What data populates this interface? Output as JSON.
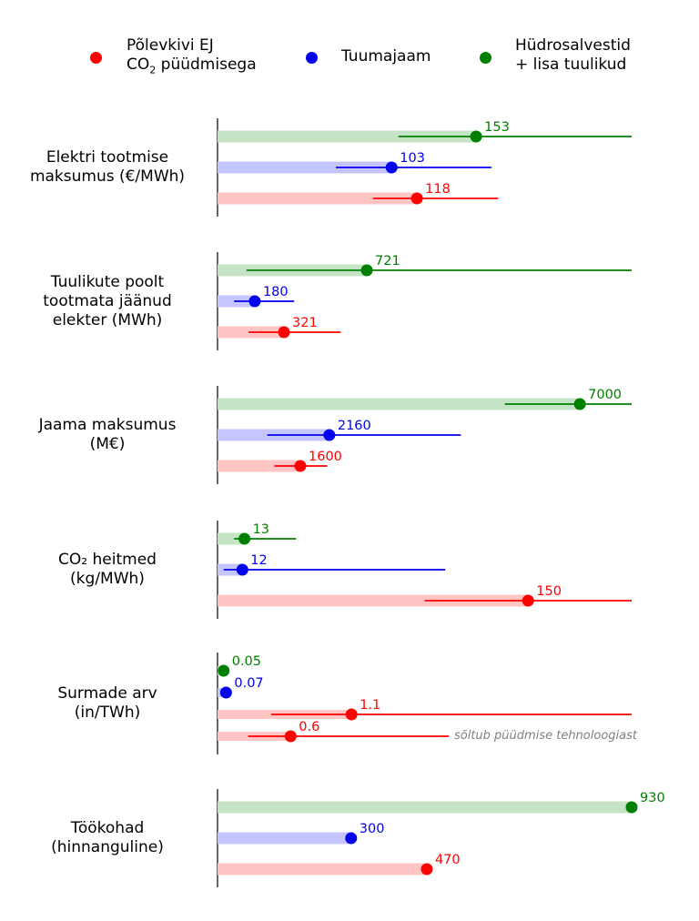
{
  "legend": {
    "items": [
      {
        "key": "red",
        "line1": "Põlevkivi EJ",
        "line2_pre": "CO",
        "line2_sub": "2",
        "line2_post": " püüdmisega",
        "color": "#ff0000"
      },
      {
        "key": "blue",
        "line1": "Tuumajaam",
        "color": "#0000ee"
      },
      {
        "key": "green",
        "line1": "Hüdrosalvestid",
        "line2": "+ lisa tuulikud",
        "color": "#008000"
      }
    ]
  },
  "note_text": "sõltub püüdmise tehnoloogiast",
  "chart_data": {
    "type": "bar",
    "series_colors": {
      "green": "#008000",
      "blue": "#0000ee",
      "red": "#ff0000"
    },
    "bar_colors": {
      "green": "#c5e3c5",
      "blue": "#c5c5ff",
      "red": "#ffc5c5"
    },
    "panels": [
      {
        "label_lines": [
          "Elektri tootmise",
          "maksumus (€/MWh)"
        ],
        "xlim": [
          0,
          245
        ],
        "rows": [
          {
            "series": "green",
            "value": 153,
            "label": "153",
            "lo": 107,
            "hi": 245
          },
          {
            "series": "blue",
            "value": 103,
            "label": "103",
            "lo": 70,
            "hi": 162
          },
          {
            "series": "red",
            "value": 118,
            "label": "118",
            "lo": 92,
            "hi": 166
          }
        ]
      },
      {
        "label_lines": [
          "Tuulikute poolt",
          "tootmata jäänud",
          "elekter (MWh)"
        ],
        "xlim": [
          0,
          2000
        ],
        "rows": [
          {
            "series": "green",
            "value": 721,
            "label": "721",
            "lo": 140,
            "hi": 2000
          },
          {
            "series": "blue",
            "value": 180,
            "label": "180",
            "lo": 80,
            "hi": 370
          },
          {
            "series": "red",
            "value": 321,
            "label": "321",
            "lo": 150,
            "hi": 595
          }
        ]
      },
      {
        "label_lines": [
          "Jaama maksumus",
          "(M€)"
        ],
        "xlim": [
          0,
          8000
        ],
        "rows": [
          {
            "series": "green",
            "value": 7000,
            "label": "7000",
            "lo": 5550,
            "hi": 8800
          },
          {
            "series": "blue",
            "value": 2160,
            "label": "2160",
            "lo": 960,
            "hi": 4700
          },
          {
            "series": "red",
            "value": 1600,
            "label": "1600",
            "lo": 1100,
            "hi": 2120
          }
        ]
      },
      {
        "label_lines": [
          "CO₂ heitmed",
          "(kg/MWh)"
        ],
        "xlim": [
          0,
          200
        ],
        "rows": [
          {
            "series": "green",
            "value": 13,
            "label": "13",
            "lo": 8,
            "hi": 38
          },
          {
            "series": "blue",
            "value": 12,
            "label": "12",
            "lo": 3,
            "hi": 110
          },
          {
            "series": "red",
            "value": 150,
            "label": "150",
            "lo": 100,
            "hi": 200
          }
        ]
      },
      {
        "label_lines": [
          "Surmade arv",
          "(in/TWh)"
        ],
        "xlim": [
          0,
          3.4
        ],
        "rows": [
          {
            "series": "green",
            "value": 0.05,
            "label": "0.05"
          },
          {
            "series": "blue",
            "value": 0.07,
            "label": "0.07"
          },
          {
            "series": "red",
            "value": 1.1,
            "label": "1.1",
            "lo": 0.44,
            "hi": 3.4
          },
          {
            "series": "red",
            "value": 0.6,
            "label": "0.6",
            "lo": 0.25,
            "hi": 1.9,
            "note": true
          }
        ]
      },
      {
        "label_lines": [
          "Töökohad",
          "(hinnanguline)"
        ],
        "xlim": [
          0,
          930
        ],
        "rows": [
          {
            "series": "green",
            "value": 930,
            "label": "930"
          },
          {
            "series": "blue",
            "value": 300,
            "label": "300"
          },
          {
            "series": "red",
            "value": 470,
            "label": "470"
          }
        ]
      }
    ]
  }
}
